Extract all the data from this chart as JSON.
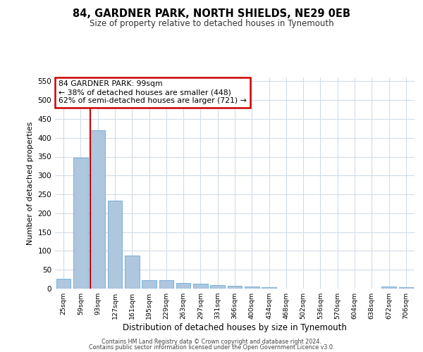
{
  "title": "84, GARDNER PARK, NORTH SHIELDS, NE29 0EB",
  "subtitle": "Size of property relative to detached houses in Tynemouth",
  "xlabel": "Distribution of detached houses by size in Tynemouth",
  "ylabel": "Number of detached properties",
  "categories": [
    "25sqm",
    "59sqm",
    "93sqm",
    "127sqm",
    "161sqm",
    "195sqm",
    "229sqm",
    "263sqm",
    "297sqm",
    "331sqm",
    "366sqm",
    "400sqm",
    "434sqm",
    "468sqm",
    "502sqm",
    "536sqm",
    "570sqm",
    "604sqm",
    "638sqm",
    "672sqm",
    "706sqm"
  ],
  "values": [
    27,
    348,
    420,
    233,
    88,
    23,
    23,
    15,
    13,
    10,
    7,
    6,
    4,
    0,
    0,
    0,
    0,
    0,
    0,
    5,
    4
  ],
  "bar_color": "#aec6de",
  "bar_edge_color": "#6aaad4",
  "grid_color": "#d0dcea",
  "background_color": "#ffffff",
  "annotation_text": "84 GARDNER PARK: 99sqm\n← 38% of detached houses are smaller (448)\n62% of semi-detached houses are larger (721) →",
  "annotation_box_color": "#ffffff",
  "annotation_box_edge": "#cc0000",
  "vline_color": "#cc0000",
  "ylim": [
    0,
    560
  ],
  "yticks": [
    0,
    50,
    100,
    150,
    200,
    250,
    300,
    350,
    400,
    450,
    500,
    550
  ],
  "footer_line1": "Contains HM Land Registry data © Crown copyright and database right 2024.",
  "footer_line2": "Contains public sector information licensed under the Open Government Licence v3.0."
}
